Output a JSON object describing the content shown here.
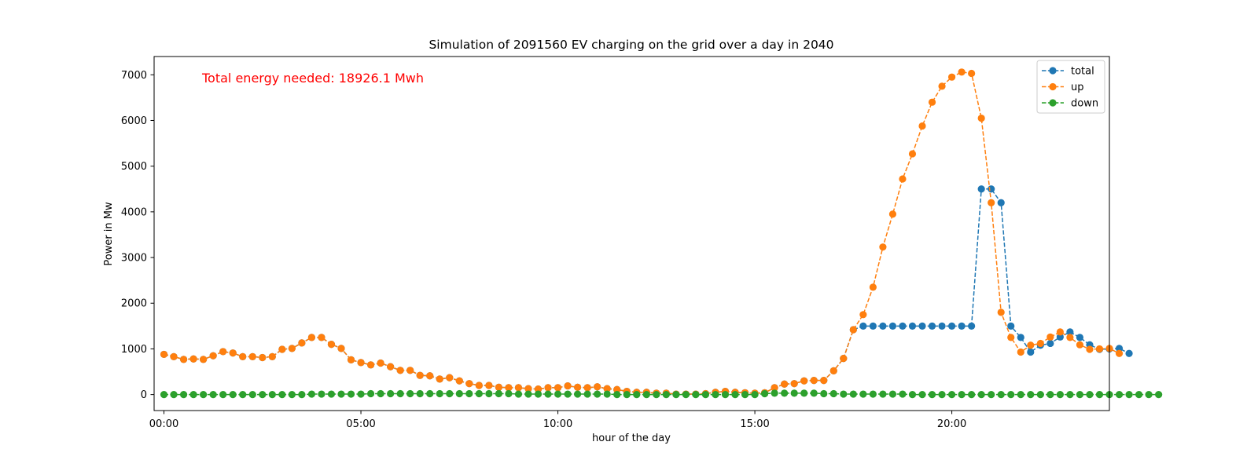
{
  "chart_data": {
    "type": "line",
    "title": "Simulation of 2091560 EV charging on the grid over a day in 2040",
    "xlabel": "hour of the day",
    "ylabel": "Power in Mw",
    "annotation": {
      "text": "Total energy needed: 18926.1 Mwh",
      "color": "#ff0000"
    },
    "xlim": [
      -0.25,
      24.0
    ],
    "ylim": [
      -350,
      7400
    ],
    "x_ticks": [
      0,
      5,
      10,
      15,
      20
    ],
    "x_tick_labels": [
      "00:00",
      "05:00",
      "10:00",
      "15:00",
      "20:00"
    ],
    "y_ticks": [
      0,
      1000,
      2000,
      3000,
      4000,
      5000,
      6000,
      7000
    ],
    "y_tick_labels": [
      "0",
      "1000",
      "2000",
      "3000",
      "4000",
      "5000",
      "6000",
      "7000"
    ],
    "grid": false,
    "legend_position": "top-right",
    "marker": "circle",
    "linestyle": "dashed",
    "x_step_hours": 0.25,
    "series": [
      {
        "name": "total",
        "color": "#1f77b4",
        "values": [
          880,
          830,
          770,
          780,
          770,
          850,
          940,
          910,
          830,
          830,
          810,
          830,
          990,
          1010,
          1130,
          1250,
          1250,
          1100,
          1010,
          760,
          700,
          650,
          690,
          610,
          530,
          530,
          420,
          410,
          340,
          370,
          300,
          240,
          200,
          200,
          160,
          150,
          150,
          130,
          120,
          150,
          150,
          190,
          160,
          150,
          170,
          130,
          110,
          70,
          50,
          50,
          30,
          30,
          10,
          10,
          10,
          20,
          50,
          70,
          50,
          40,
          30,
          40,
          150,
          230,
          240,
          300,
          310,
          310,
          520,
          790,
          1420,
          1500,
          1500,
          1500,
          1500,
          1500,
          1500,
          1500,
          1500,
          1500,
          1500,
          1500,
          1500,
          4500,
          4500,
          4200,
          1500,
          1250,
          930,
          1080,
          1120,
          1260,
          1370,
          1250,
          1090,
          990,
          1000,
          1010,
          900
        ],
        "z": 1
      },
      {
        "name": "up",
        "color": "#ff7f0e",
        "values": [
          880,
          830,
          770,
          780,
          770,
          850,
          940,
          910,
          830,
          830,
          810,
          830,
          990,
          1010,
          1130,
          1250,
          1250,
          1100,
          1010,
          760,
          700,
          650,
          690,
          610,
          530,
          530,
          420,
          410,
          340,
          370,
          300,
          240,
          200,
          200,
          160,
          150,
          150,
          130,
          120,
          150,
          150,
          190,
          160,
          150,
          170,
          130,
          110,
          70,
          50,
          50,
          30,
          30,
          10,
          10,
          10,
          20,
          50,
          70,
          50,
          40,
          30,
          40,
          150,
          230,
          240,
          300,
          310,
          310,
          520,
          790,
          1420,
          1750,
          2350,
          3230,
          3950,
          4720,
          5270,
          5880,
          6400,
          6750,
          6950,
          7060,
          7030,
          6050,
          4200,
          1800,
          1250,
          930,
          1080,
          1120,
          1260,
          1370,
          1250,
          1090,
          990,
          1000,
          1010,
          900
        ],
        "z": 2
      },
      {
        "name": "down",
        "color": "#2ca02c",
        "values": [
          0,
          0,
          0,
          0,
          0,
          0,
          0,
          0,
          0,
          0,
          0,
          0,
          0,
          0,
          0,
          10,
          10,
          10,
          10,
          10,
          10,
          20,
          20,
          20,
          20,
          20,
          20,
          20,
          20,
          20,
          20,
          20,
          20,
          20,
          20,
          20,
          10,
          10,
          10,
          10,
          10,
          10,
          10,
          10,
          10,
          10,
          0,
          0,
          0,
          0,
          0,
          0,
          0,
          0,
          0,
          0,
          0,
          0,
          0,
          0,
          0,
          20,
          30,
          30,
          30,
          30,
          30,
          20,
          20,
          10,
          10,
          10,
          10,
          10,
          10,
          10,
          0,
          0,
          0,
          0,
          0,
          0,
          0,
          0,
          0,
          0,
          0,
          0,
          0,
          0,
          0,
          0,
          0,
          0,
          0,
          0,
          0,
          0,
          0,
          0,
          0,
          0
        ],
        "z": 3
      }
    ]
  }
}
